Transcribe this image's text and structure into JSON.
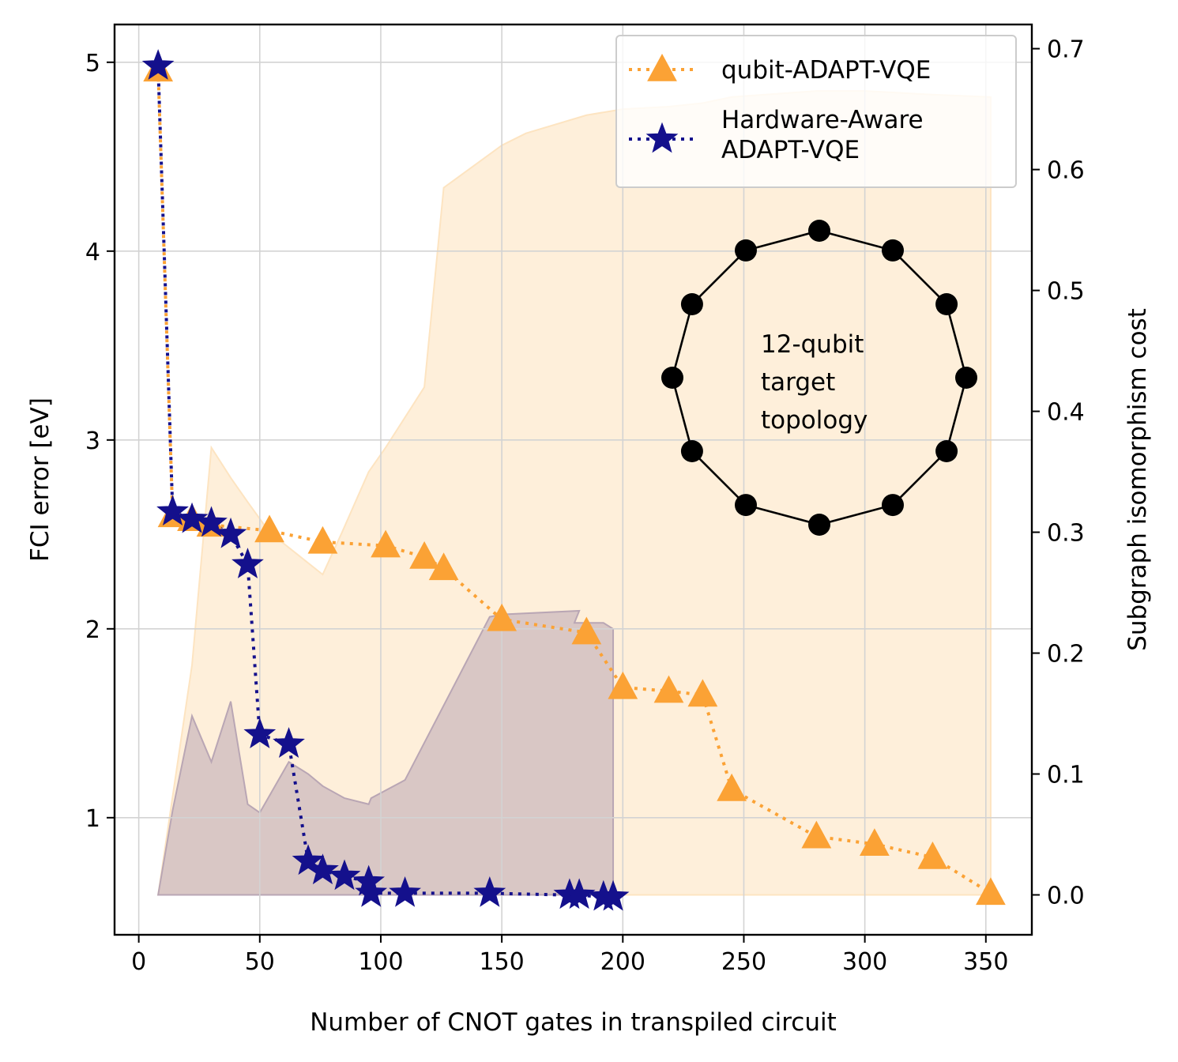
{
  "chart_data": {
    "type": "line",
    "xlabel": "Number of CNOT gates in transpiled circuit",
    "ylabel": "FCI error [eV]",
    "y2label": "Subgraph isomorphism cost",
    "xlim": [
      -10,
      369
    ],
    "ylim": [
      0.38,
      5.2
    ],
    "y2lim": [
      -0.033,
      0.72
    ],
    "xticks": [
      0,
      50,
      100,
      150,
      200,
      250,
      300,
      350
    ],
    "yticks": [
      1,
      2,
      3,
      4,
      5
    ],
    "y2ticks": [
      0.0,
      0.1,
      0.2,
      0.3,
      0.4,
      0.5,
      0.6,
      0.7
    ],
    "grid": true,
    "legend_position": "top-right",
    "series": [
      {
        "name": "qubit-ADAPT-VQE",
        "color": "#fba235",
        "marker": "triangle",
        "linestyle": "dotted",
        "points": [
          [
            8,
            4.96
          ],
          [
            14,
            2.6
          ],
          [
            22,
            2.58
          ],
          [
            30,
            2.55
          ],
          [
            54,
            2.52
          ],
          [
            76,
            2.46
          ],
          [
            102,
            2.44
          ],
          [
            118,
            2.38
          ],
          [
            126,
            2.32
          ],
          [
            150,
            2.05
          ],
          [
            185,
            1.98
          ],
          [
            200,
            1.69
          ],
          [
            219,
            1.67
          ],
          [
            233,
            1.65
          ],
          [
            245,
            1.15
          ],
          [
            280,
            0.9
          ],
          [
            304,
            0.86
          ],
          [
            328,
            0.79
          ],
          [
            352,
            0.6
          ]
        ]
      },
      {
        "name": "Hardware-Aware ADAPT-VQE",
        "color": "#14108c",
        "marker": "star",
        "linestyle": "dotted",
        "points": [
          [
            8,
            4.98
          ],
          [
            14,
            2.62
          ],
          [
            22,
            2.58
          ],
          [
            30,
            2.56
          ],
          [
            38,
            2.5
          ],
          [
            45,
            2.34
          ],
          [
            50,
            1.44
          ],
          [
            62,
            1.39
          ],
          [
            70,
            0.77
          ],
          [
            76,
            0.72
          ],
          [
            85,
            0.69
          ],
          [
            95,
            0.66
          ],
          [
            96,
            0.6
          ],
          [
            110,
            0.6
          ],
          [
            145,
            0.6
          ],
          [
            178,
            0.59
          ],
          [
            182,
            0.59
          ],
          [
            192,
            0.58
          ],
          [
            196,
            0.58
          ]
        ]
      }
    ],
    "cost_bands": [
      {
        "series": "qubit-ADAPT-VQE",
        "color": "#fde4c1",
        "axis": "right",
        "points": [
          [
            8,
            0.0
          ],
          [
            22,
            0.19
          ],
          [
            30,
            0.37
          ],
          [
            38,
            0.345
          ],
          [
            45,
            0.325
          ],
          [
            54,
            0.3
          ],
          [
            76,
            0.265
          ],
          [
            84,
            0.3
          ],
          [
            95,
            0.35
          ],
          [
            102,
            0.37
          ],
          [
            118,
            0.42
          ],
          [
            126,
            0.585
          ],
          [
            150,
            0.62
          ],
          [
            160,
            0.63
          ],
          [
            185,
            0.645
          ],
          [
            200,
            0.65
          ],
          [
            219,
            0.652
          ],
          [
            233,
            0.655
          ],
          [
            245,
            0.66
          ],
          [
            280,
            0.665
          ],
          [
            300,
            0.665
          ],
          [
            328,
            0.662
          ],
          [
            352,
            0.66
          ]
        ]
      },
      {
        "series": "Hardware-Aware ADAPT-VQE",
        "color": "#b9a6b4",
        "axis": "right",
        "points": [
          [
            8,
            0.0
          ],
          [
            14,
            0.07
          ],
          [
            22,
            0.148
          ],
          [
            30,
            0.11
          ],
          [
            38,
            0.16
          ],
          [
            45,
            0.075
          ],
          [
            50,
            0.068
          ],
          [
            62,
            0.11
          ],
          [
            70,
            0.1
          ],
          [
            76,
            0.09
          ],
          [
            85,
            0.08
          ],
          [
            95,
            0.075
          ],
          [
            96,
            0.08
          ],
          [
            110,
            0.095
          ],
          [
            145,
            0.23
          ],
          [
            150,
            0.232
          ],
          [
            182,
            0.235
          ],
          [
            180,
            0.225
          ],
          [
            192,
            0.225
          ],
          [
            196,
            0.22
          ]
        ]
      }
    ],
    "inset": {
      "text_lines": [
        "12-qubit",
        "target",
        "topology"
      ],
      "node_count": 12
    }
  }
}
